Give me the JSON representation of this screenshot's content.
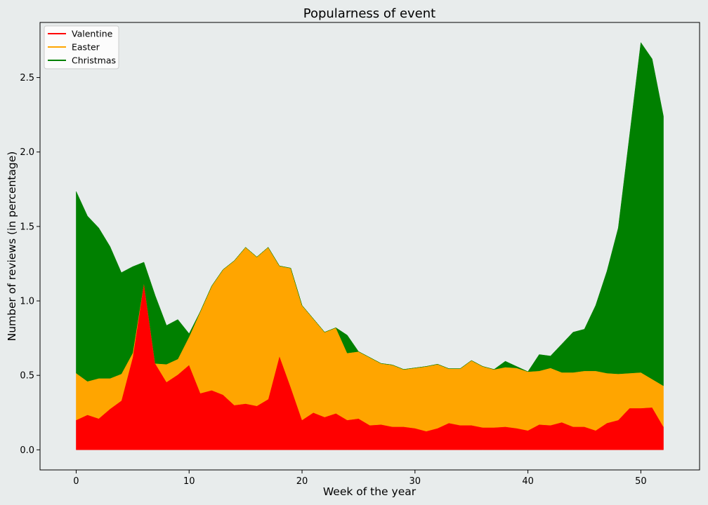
{
  "chart_data": {
    "type": "area",
    "title": "Popularness of event",
    "xlabel": "Week of the year",
    "ylabel": "Number of reviews (in percentage)",
    "xlim": [
      -3.2,
      55.2
    ],
    "ylim": [
      -0.135,
      2.87
    ],
    "xticks": [
      0,
      10,
      20,
      30,
      40,
      50
    ],
    "yticks": [
      0.0,
      0.5,
      1.0,
      1.5,
      2.0,
      2.5
    ],
    "grid": false,
    "legend_position": "top-left",
    "x": [
      0,
      1,
      2,
      3,
      4,
      5,
      6,
      7,
      8,
      9,
      10,
      11,
      12,
      13,
      14,
      15,
      16,
      17,
      18,
      19,
      20,
      21,
      22,
      23,
      24,
      25,
      26,
      27,
      28,
      29,
      30,
      31,
      32,
      33,
      34,
      35,
      36,
      37,
      38,
      39,
      40,
      41,
      42,
      43,
      44,
      45,
      46,
      47,
      48,
      49,
      50,
      51,
      52
    ],
    "series": [
      {
        "name": "Valentine",
        "color": "#ff0000",
        "values": [
          0.2,
          0.235,
          0.21,
          0.275,
          0.33,
          0.62,
          1.12,
          0.58,
          0.455,
          0.505,
          0.57,
          0.38,
          0.4,
          0.37,
          0.3,
          0.31,
          0.295,
          0.34,
          0.63,
          0.42,
          0.2,
          0.25,
          0.22,
          0.245,
          0.2,
          0.21,
          0.165,
          0.17,
          0.155,
          0.155,
          0.145,
          0.125,
          0.145,
          0.18,
          0.165,
          0.165,
          0.15,
          0.15,
          0.155,
          0.145,
          0.13,
          0.17,
          0.165,
          0.185,
          0.155,
          0.155,
          0.13,
          0.18,
          0.2,
          0.28,
          0.28,
          0.285,
          0.155
        ]
      },
      {
        "name": "Easter",
        "color": "#ffa500",
        "values": [
          0.315,
          0.225,
          0.27,
          0.205,
          0.18,
          0.03,
          0.0,
          0.0,
          0.12,
          0.105,
          0.19,
          0.55,
          0.7,
          0.84,
          0.97,
          1.05,
          1.0,
          1.02,
          0.605,
          0.8,
          0.77,
          0.63,
          0.57,
          0.575,
          0.45,
          0.45,
          0.455,
          0.41,
          0.415,
          0.385,
          0.405,
          0.435,
          0.43,
          0.365,
          0.38,
          0.435,
          0.41,
          0.39,
          0.4,
          0.405,
          0.395,
          0.36,
          0.385,
          0.335,
          0.365,
          0.375,
          0.4,
          0.335,
          0.31,
          0.235,
          0.24,
          0.19,
          0.275
        ]
      },
      {
        "name": "Christmas",
        "color": "#008000",
        "values": [
          1.22,
          1.11,
          1.01,
          0.885,
          0.68,
          0.58,
          0.14,
          0.455,
          0.26,
          0.265,
          0.02,
          0.0,
          0.0,
          0.0,
          0.0,
          0.0,
          0.0,
          0.0,
          0.0,
          0.0,
          0.0,
          0.0,
          0.0,
          0.0,
          0.12,
          0.0,
          0.0,
          0.0,
          0.0,
          0.0,
          0.0,
          0.0,
          0.0,
          0.0,
          0.0,
          0.0,
          0.0,
          0.0,
          0.04,
          0.01,
          0.0,
          0.11,
          0.08,
          0.19,
          0.27,
          0.28,
          0.44,
          0.685,
          0.98,
          1.595,
          2.215,
          2.15,
          1.81
        ]
      }
    ]
  }
}
